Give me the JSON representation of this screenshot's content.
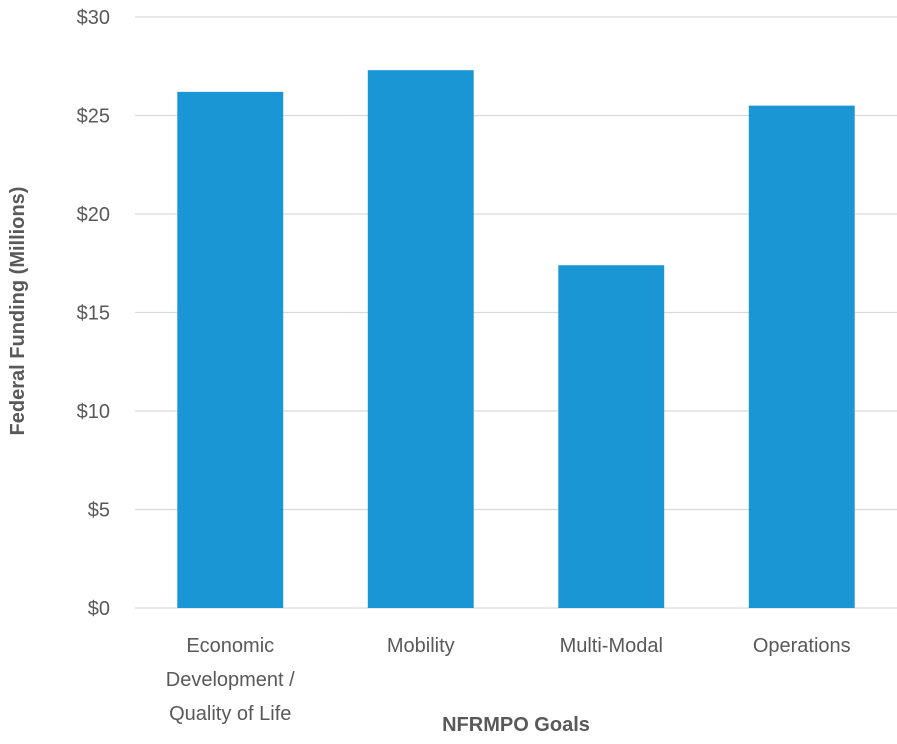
{
  "chart_data": {
    "type": "bar",
    "title": "",
    "xlabel": "NFRMPO Goals",
    "ylabel": "Federal Funding (Millions)",
    "categories": [
      [
        "Economic",
        "Development /",
        "Quality of Life"
      ],
      [
        "Mobility"
      ],
      [
        "Multi-Modal"
      ],
      [
        "Operations"
      ]
    ],
    "values": [
      26.2,
      27.3,
      17.4,
      25.5
    ],
    "ylim": [
      0,
      30
    ],
    "yticks": [
      0,
      5,
      10,
      15,
      20,
      25,
      30
    ],
    "ytick_labels": [
      "$0",
      "$5",
      "$10",
      "$15",
      "$20",
      "$25",
      "$30"
    ],
    "grid": true,
    "legend": "none",
    "colors": {
      "bar": "#1b96d4",
      "gridline": "#d9d9d9",
      "text": "#595959"
    }
  }
}
